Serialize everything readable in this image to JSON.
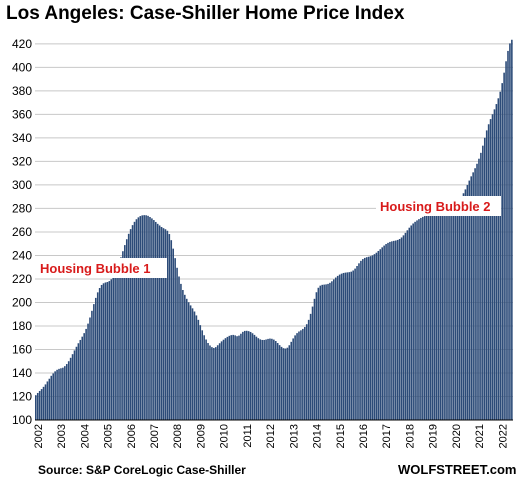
{
  "chart_data": {
    "type": "bar",
    "title": "Los Angeles: Case-Shiller Home Price Index",
    "xlabel": "",
    "ylabel": "",
    "ylim": [
      100,
      425
    ],
    "yticks": [
      100,
      120,
      140,
      160,
      180,
      200,
      220,
      240,
      260,
      280,
      300,
      320,
      340,
      360,
      380,
      400,
      420
    ],
    "x_ticks": [
      "2002",
      "2003",
      "2004",
      "2005",
      "2006",
      "2007",
      "2008",
      "2009",
      "2010",
      "2011",
      "2012",
      "2013",
      "2014",
      "2015",
      "2016",
      "2017",
      "2018",
      "2019",
      "2020",
      "2021",
      "2022"
    ],
    "grid": "horizontal",
    "start_date": "2002-01",
    "values": [
      121.1,
      123.0,
      124.7,
      126.3,
      128.2,
      130.3,
      132.8,
      135.1,
      137.6,
      139.6,
      141.4,
      142.7,
      143.5,
      144.0,
      144.5,
      145.8,
      147.6,
      150.0,
      152.9,
      156.0,
      159.2,
      162.3,
      165.3,
      168.1,
      170.9,
      173.9,
      177.5,
      182.0,
      187.2,
      192.9,
      198.6,
      203.9,
      208.6,
      212.3,
      214.9,
      216.3,
      217.0,
      217.4,
      218.2,
      219.7,
      222.0,
      225.1,
      229.0,
      233.5,
      238.4,
      243.6,
      248.8,
      253.8,
      258.4,
      262.4,
      265.8,
      268.6,
      270.8,
      272.4,
      273.5,
      274.1,
      274.3,
      274.2,
      273.7,
      272.7,
      271.5,
      270.1,
      268.5,
      266.9,
      265.5,
      264.2,
      263.2,
      262.3,
      261.0,
      258.2,
      253.0,
      245.8,
      237.7,
      229.5,
      222.1,
      215.8,
      210.6,
      206.5,
      203.1,
      200.2,
      197.5,
      195.0,
      192.3,
      189.0,
      185.2,
      180.7,
      176.3,
      172.1,
      168.5,
      165.5,
      163.4,
      162.0,
      161.3,
      162.0,
      163.6,
      165.3,
      166.9,
      168.3,
      169.6,
      170.7,
      171.6,
      172.2,
      172.4,
      172.0,
      171.3,
      171.8,
      173.4,
      175.0,
      175.8,
      175.9,
      175.6,
      174.9,
      173.8,
      172.4,
      170.9,
      169.6,
      168.6,
      168.1,
      168.1,
      168.5,
      169.0,
      169.3,
      169.1,
      168.4,
      167.2,
      165.5,
      163.7,
      162.2,
      161.1,
      160.8,
      161.5,
      163.6,
      166.5,
      169.4,
      172.0,
      173.9,
      175.3,
      176.3,
      177.5,
      179.1,
      181.5,
      185.2,
      190.3,
      196.5,
      203.1,
      208.7,
      212.5,
      214.3,
      215.0,
      215.2,
      215.4,
      215.8,
      216.7,
      218.0,
      219.6,
      221.2,
      222.6,
      223.7,
      224.5,
      225.1,
      225.4,
      225.6,
      225.8,
      226.2,
      227.2,
      228.8,
      231.0,
      233.3,
      235.4,
      236.9,
      237.9,
      238.5,
      238.9,
      239.4,
      240.1,
      241.1,
      242.3,
      243.8,
      245.3,
      246.9,
      248.4,
      249.7,
      250.7,
      251.5,
      252.0,
      252.4,
      252.7,
      253.2,
      254.0,
      255.3,
      257.1,
      259.2,
      261.4,
      263.6,
      265.5,
      267.2,
      268.6,
      269.8,
      270.9,
      271.9,
      272.8,
      273.5,
      274.0,
      274.3,
      274.5,
      274.9,
      275.4,
      276.1,
      276.8,
      277.5,
      278.2,
      278.9,
      279.8,
      280.7,
      281.8,
      283.0,
      284.0,
      285.1,
      286.4,
      288.1,
      290.2,
      292.9,
      296.2,
      299.9,
      303.7,
      307.3,
      310.7,
      314.2,
      318.0,
      322.3,
      327.3,
      333.4,
      340.1,
      346.4,
      351.6,
      356.0,
      360.1,
      364.3,
      368.8,
      373.7,
      379.3,
      386.6,
      395.5,
      405.2,
      414.0,
      420.4,
      423.5
    ],
    "annotations": [
      {
        "text": "Housing Bubble 1"
      },
      {
        "text": "Housing Bubble 2"
      }
    ]
  },
  "source": "Source: S&P CoreLogic Case-Shiller",
  "brand": "WOLFSTREET.com"
}
